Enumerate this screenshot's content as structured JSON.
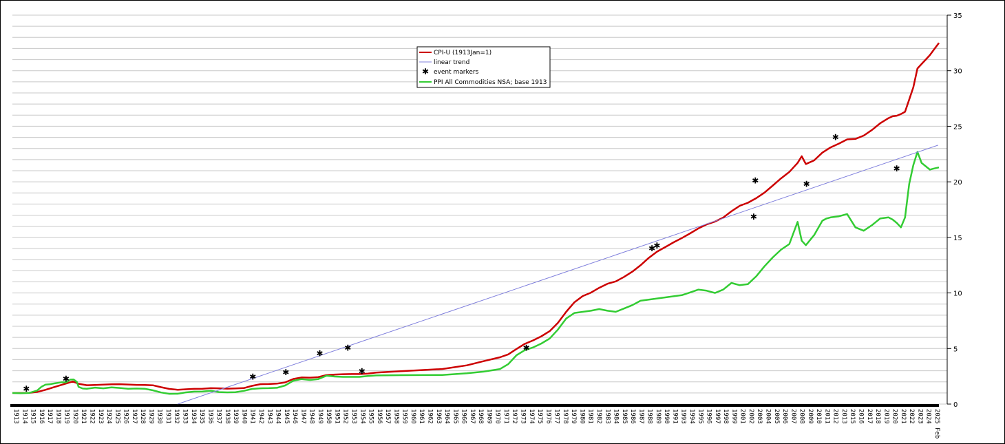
{
  "chart_data": {
    "type": "line",
    "ylim": [
      0,
      35
    ],
    "y_ticks": [
      0,
      5,
      10,
      15,
      20,
      25,
      30,
      35
    ],
    "y_tick_labels": [
      "0",
      "5",
      "10",
      "15",
      "20",
      "25",
      "30",
      "35"
    ],
    "x_range": [
      1913.0,
      2025.1
    ],
    "x_tick_labels": [
      "1913",
      "1914",
      "1915",
      "1916",
      "1917",
      "1918",
      "1919",
      "1920",
      "1921",
      "1922",
      "1923",
      "1924",
      "1925",
      "1926",
      "1927",
      "1928",
      "1929",
      "1930",
      "1931",
      "1932",
      "1933",
      "1934",
      "1935",
      "1936",
      "1937",
      "1938",
      "1939",
      "1940",
      "1941",
      "1942",
      "1943",
      "1944",
      "1945",
      "1946",
      "1947",
      "1948",
      "1949",
      "1950",
      "1951",
      "1952",
      "1953",
      "1954",
      "1955",
      "1956",
      "1957",
      "1958",
      "1959",
      "1960",
      "1961",
      "1962",
      "1963",
      "1964",
      "1965",
      "1966",
      "1967",
      "1968",
      "1969",
      "1970",
      "1971",
      "1972",
      "1973",
      "1974",
      "1975",
      "1976",
      "1977",
      "1978",
      "1979",
      "1980",
      "1981",
      "1982",
      "1983",
      "1984",
      "1985",
      "1986",
      "1987",
      "1988",
      "1989",
      "1990",
      "1991",
      "1993",
      "1994",
      "1995",
      "1996",
      "1997",
      "1998",
      "1999",
      "2001",
      "2002",
      "2003",
      "2004",
      "2005",
      "2006",
      "2007",
      "2008",
      "2009",
      "2010",
      "2011",
      "2012",
      "2013",
      "2015",
      "2016",
      "2017",
      "2018",
      "2019",
      "2020",
      "2021",
      "2022",
      "2023",
      "2024",
      "2025 Feb"
    ],
    "grid": true,
    "y_axis_side": "right",
    "legend_position": "top-center",
    "legend": [
      {
        "name": "CPI-U (1913Jan=1)",
        "color": "#cc0000",
        "style": "line"
      },
      {
        "name": "linear trend",
        "color": "#8080dd",
        "style": "line"
      },
      {
        "name": "event markers",
        "color": "#000000",
        "style": "marker"
      },
      {
        "name": "PPI All Commodities NSA; base 1913",
        "color": "#33cc33",
        "style": "line"
      }
    ],
    "series": [
      {
        "name": "CPI-U (1913Jan=1)",
        "color": "#cc0000",
        "x": [
          1913.0,
          1915.0,
          1916.0,
          1917.0,
          1918.0,
          1919.0,
          1920.3,
          1921.0,
          1922.0,
          1923.0,
          1925.0,
          1926.0,
          1928.0,
          1929.0,
          1930.0,
          1931.0,
          1932.0,
          1933.0,
          1934.0,
          1935.0,
          1936.0,
          1937.0,
          1938.0,
          1939.0,
          1940.0,
          1941.0,
          1942.0,
          1943.0,
          1944.0,
          1945.0,
          1946.0,
          1947.0,
          1948.0,
          1949.0,
          1950.0,
          1951.0,
          1952.0,
          1953.0,
          1954.0,
          1955.0,
          1956.0,
          1957.0,
          1960.0,
          1965.0,
          1968.0,
          1970.0,
          1972.0,
          1973.0,
          1974.0,
          1975.0,
          1976.0,
          1977.0,
          1978.0,
          1979.0,
          1980.0,
          1981.0,
          1982.0,
          1983.0,
          1984.0,
          1985.0,
          1986.0,
          1987.0,
          1988.0,
          1989.0,
          1990.0,
          1991.0,
          1992.0,
          1993.0,
          1994.0,
          1995.0,
          1996.0,
          1997.0,
          1998.0,
          1999.0,
          2000.0,
          2001.0,
          2002.0,
          2003.0,
          2004.0,
          2005.0,
          2006.0,
          2007.0,
          2008.0,
          2008.5,
          2009.0,
          2010.0,
          2011.0,
          2012.0,
          2013.0,
          2014.0,
          2015.0,
          2016.0,
          2017.0,
          2018.0,
          2019.0,
          2019.5,
          2020.0,
          2020.5,
          2021.0,
          2021.5,
          2022.0,
          2022.5,
          2023.0,
          2023.5,
          2024.0,
          2024.5,
          2025.1
        ],
        "values": [
          1.0,
          1.01,
          1.09,
          1.28,
          1.51,
          1.74,
          2.03,
          1.83,
          1.7,
          1.72,
          1.78,
          1.79,
          1.73,
          1.72,
          1.69,
          1.52,
          1.36,
          1.29,
          1.33,
          1.37,
          1.38,
          1.43,
          1.42,
          1.39,
          1.41,
          1.44,
          1.64,
          1.79,
          1.8,
          1.84,
          1.95,
          2.26,
          2.4,
          2.38,
          2.42,
          2.61,
          2.66,
          2.69,
          2.7,
          2.7,
          2.74,
          2.84,
          2.96,
          3.15,
          3.49,
          3.86,
          4.21,
          4.47,
          4.96,
          5.42,
          5.73,
          6.1,
          6.56,
          7.31,
          8.3,
          9.16,
          9.72,
          10.03,
          10.46,
          10.83,
          11.04,
          11.44,
          11.91,
          12.49,
          13.16,
          13.72,
          14.13,
          14.56,
          14.94,
          15.36,
          15.81,
          16.17,
          16.42,
          16.78,
          17.35,
          17.84,
          18.12,
          18.53,
          19.03,
          19.67,
          20.31,
          20.89,
          21.7,
          22.3,
          21.6,
          21.93,
          22.63,
          23.1,
          23.44,
          23.82,
          23.86,
          24.16,
          24.67,
          25.27,
          25.73,
          25.9,
          25.95,
          26.1,
          26.3,
          27.4,
          28.5,
          30.2,
          30.6,
          31.0,
          31.4,
          31.9,
          32.5
        ]
      },
      {
        "name": "PPI All Commodities NSA; base 1913",
        "color": "#33cc33",
        "x": [
          1913.0,
          1914.0,
          1915.0,
          1916.0,
          1916.5,
          1917.0,
          1917.5,
          1918.0,
          1919.0,
          1919.5,
          1920.0,
          1920.4,
          1920.8,
          1921.0,
          1921.5,
          1922.0,
          1923.0,
          1924.0,
          1925.0,
          1926.0,
          1927.0,
          1928.0,
          1929.0,
          1930.0,
          1931.0,
          1932.0,
          1933.0,
          1934.0,
          1935.0,
          1936.0,
          1937.0,
          1938.0,
          1939.0,
          1940.0,
          1941.0,
          1942.0,
          1943.0,
          1944.0,
          1945.0,
          1946.0,
          1947.0,
          1948.0,
          1949.0,
          1950.0,
          1951.0,
          1952.0,
          1953.0,
          1954.0,
          1955.0,
          1956.0,
          1957.0,
          1960.0,
          1965.0,
          1968.0,
          1970.0,
          1972.0,
          1973.0,
          1974.0,
          1975.0,
          1976.0,
          1977.0,
          1978.0,
          1979.0,
          1980.0,
          1981.0,
          1982.0,
          1983.0,
          1984.0,
          1985.0,
          1986.0,
          1987.0,
          1988.0,
          1989.0,
          1990.0,
          1991.0,
          1992.0,
          1993.0,
          1994.0,
          1995.0,
          1996.0,
          1997.0,
          1998.0,
          1999.0,
          2000.0,
          2001.0,
          2002.0,
          2003.0,
          2004.0,
          2005.0,
          2006.0,
          2007.0,
          2008.0,
          2008.5,
          2009.0,
          2010.0,
          2011.0,
          2011.5,
          2012.0,
          2013.0,
          2014.0,
          2015.0,
          2016.0,
          2017.0,
          2018.0,
          2019.0,
          2019.5,
          2020.0,
          2020.5,
          2021.0,
          2021.5,
          2022.0,
          2022.5,
          2023.0,
          2023.5,
          2024.0,
          2024.5,
          2025.1
        ],
        "values": [
          1.0,
          0.97,
          1.0,
          1.22,
          1.55,
          1.75,
          1.78,
          1.85,
          1.97,
          1.95,
          2.2,
          2.22,
          2.0,
          1.55,
          1.4,
          1.38,
          1.48,
          1.42,
          1.5,
          1.45,
          1.38,
          1.4,
          1.38,
          1.24,
          1.04,
          0.92,
          0.93,
          1.05,
          1.12,
          1.13,
          1.2,
          1.08,
          1.05,
          1.07,
          1.19,
          1.36,
          1.42,
          1.43,
          1.46,
          1.67,
          2.1,
          2.25,
          2.17,
          2.25,
          2.55,
          2.48,
          2.45,
          2.45,
          2.45,
          2.52,
          2.58,
          2.6,
          2.62,
          2.77,
          2.92,
          3.15,
          3.6,
          4.4,
          4.85,
          5.1,
          5.45,
          5.9,
          6.7,
          7.7,
          8.2,
          8.3,
          8.4,
          8.55,
          8.4,
          8.3,
          8.6,
          8.9,
          9.3,
          9.4,
          9.5,
          9.6,
          9.7,
          9.8,
          10.05,
          10.3,
          10.2,
          10.0,
          10.3,
          10.9,
          10.7,
          10.8,
          11.5,
          12.4,
          13.2,
          13.9,
          14.4,
          16.4,
          14.7,
          14.3,
          15.2,
          16.5,
          16.7,
          16.8,
          16.9,
          17.1,
          15.9,
          15.6,
          16.1,
          16.7,
          16.8,
          16.6,
          16.3,
          15.9,
          16.8,
          19.8,
          21.5,
          22.7,
          21.7,
          21.4,
          21.1,
          21.2,
          21.3
        ]
      },
      {
        "name": "linear trend",
        "color": "#8080dd",
        "x": [
          1933.0,
          2025.0
        ],
        "values": [
          0.0,
          23.3
        ]
      }
    ],
    "event_markers": [
      {
        "x": 1914.6,
        "y": 1.35
      },
      {
        "x": 1919.4,
        "y": 2.25
      },
      {
        "x": 1942.0,
        "y": 2.45
      },
      {
        "x": 1946.0,
        "y": 2.85
      },
      {
        "x": 1950.1,
        "y": 4.55
      },
      {
        "x": 1953.5,
        "y": 5.05
      },
      {
        "x": 1955.2,
        "y": 2.95
      },
      {
        "x": 1975.1,
        "y": 5.05
      },
      {
        "x": 1990.3,
        "y": 14.0
      },
      {
        "x": 1990.9,
        "y": 14.25
      },
      {
        "x": 2002.6,
        "y": 16.85
      },
      {
        "x": 2002.8,
        "y": 20.1
      },
      {
        "x": 2009.0,
        "y": 19.8
      },
      {
        "x": 2012.5,
        "y": 24.0
      },
      {
        "x": 2019.9,
        "y": 21.2
      }
    ]
  }
}
